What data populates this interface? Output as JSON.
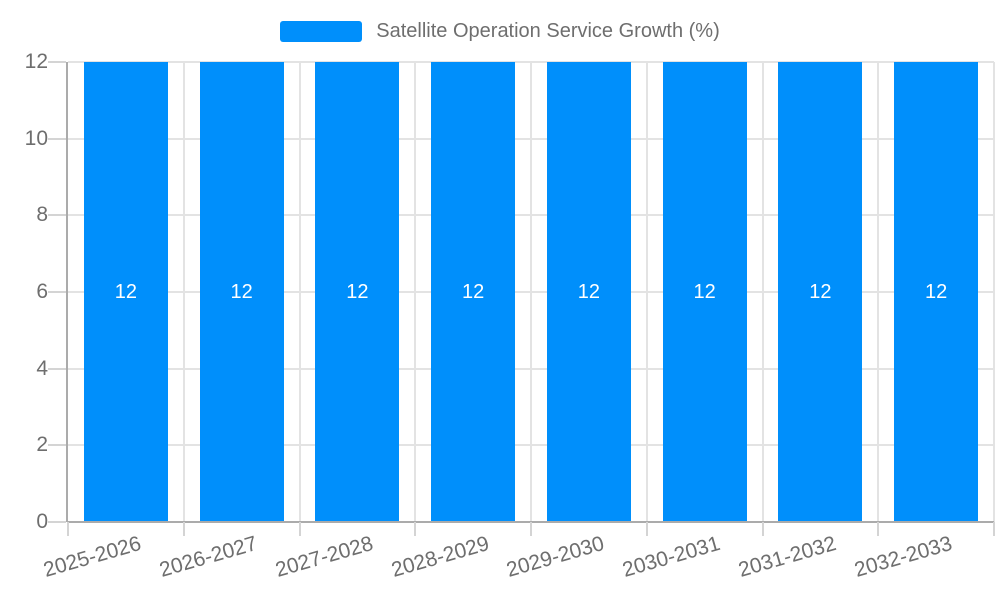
{
  "legend": {
    "label": "Satellite Operation Service Growth (%)"
  },
  "chart_data": {
    "type": "bar",
    "title": "Satellite Operation Service Growth (%)",
    "categories": [
      "2025-2026",
      "2026-2027",
      "2027-2028",
      "2028-2029",
      "2029-2030",
      "2030-2031",
      "2031-2032",
      "2032-2033"
    ],
    "values": [
      12,
      12,
      12,
      12,
      12,
      12,
      12,
      12
    ],
    "bar_labels": [
      "12",
      "12",
      "12",
      "12",
      "12",
      "12",
      "12",
      "12"
    ],
    "xlabel": "",
    "ylabel": "",
    "ylim": [
      0,
      12
    ],
    "yticks": [
      0,
      2,
      4,
      6,
      8,
      10,
      12
    ],
    "grid": true,
    "legend_position": "top",
    "bar_label_position": "inside-center",
    "colors": {
      "bar": "#008ffb",
      "grid": "#e3e3e3",
      "axis": "#ababab",
      "tick": "#d4d4d4",
      "text": "#6e6e6e",
      "bar_label": "#ffffff",
      "background": "#ffffff"
    }
  }
}
